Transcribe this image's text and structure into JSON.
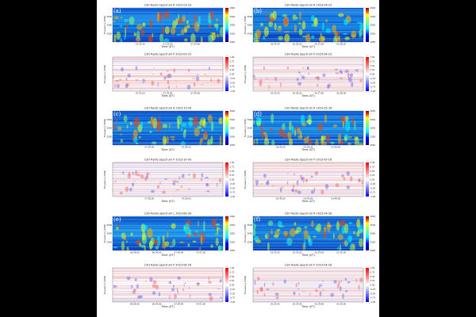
{
  "xlabel": "Time (UT)",
  "ylabel": "Frequency (MHz)",
  "spectrum_ticks": [
    "4000",
    "3500",
    "3000",
    "2500",
    "2000"
  ],
  "polarization_ticks": [
    "1.00",
    "0.75",
    "0.50",
    "0.25",
    "0.00",
    "-0.25",
    "-0.50",
    "-0.75",
    "-1.00"
  ],
  "panels": [
    {
      "kind": "spectrum",
      "label": "(a)",
      "title": "CSO Radio Spectrum R 2023-03-23",
      "xticks": [
        "07:22:00",
        "07:23:00",
        "07:24:00"
      ]
    },
    {
      "kind": "spectrum",
      "label": "(b)",
      "title": "CSO Radio Spectrum R 2023-04-23",
      "xticks": [
        "05:25:00",
        "05:26:00",
        "05:27:00",
        "05:28:00"
      ]
    },
    {
      "kind": "polarization",
      "title": "CSO Radio Spectrum P 2023-03-23",
      "xticks": [
        "07:22:00",
        "07:23:00",
        "07:24:00"
      ]
    },
    {
      "kind": "polarization",
      "title": "CSO Radio Spectrum P 2023-04-23",
      "xticks": [
        "05:25:00",
        "05:26:00",
        "05:27:00",
        "05:28:00"
      ]
    },
    {
      "kind": "spectrum",
      "label": "(c)",
      "title": "CSO Radio Spectrum R 2023-10-09",
      "xticks": [
        "07:28:00",
        "07:29:00"
      ]
    },
    {
      "kind": "spectrum",
      "label": "(d)",
      "title": "CSO Radio Spectrum R 2023-05-16",
      "xticks": [
        "03:42:00",
        "03:43:00",
        "03:44:00"
      ]
    },
    {
      "kind": "polarization",
      "title": "CSO Radio Spectrum P 2023-10-09",
      "xticks": [
        "07:28:00",
        "07:29:00"
      ]
    },
    {
      "kind": "polarization",
      "title": "CSO Radio Spectrum P 2023-05-16",
      "xticks": [
        "03:42:00",
        "03:43:00",
        "03:44:00"
      ]
    },
    {
      "kind": "spectrum",
      "label": "(e)",
      "title": "CSO Radio Spectrum L 2023-08-26",
      "xticks": [
        "06:58:00",
        "06:59:00",
        "07:00:00",
        "07:01:00"
      ]
    },
    {
      "kind": "spectrum",
      "label": "(f)",
      "title": "CSO Radio Spectrum R 2023-04-28",
      "xticks": [
        "02:32:00",
        "02:33:00",
        "02:34:00",
        "02:35:00"
      ]
    },
    {
      "kind": "polarization",
      "title": "CSO Radio Spectrum P 2023-08-26",
      "xticks": [
        "06:58:00",
        "06:59:00",
        "07:00:00",
        "07:01:00"
      ]
    },
    {
      "kind": "polarization",
      "title": "CSO Radio Spectrum P 2023-04-28",
      "xticks": [
        "02:32:00",
        "02:33:00",
        "02:34:00",
        "02:35:00"
      ]
    }
  ]
}
